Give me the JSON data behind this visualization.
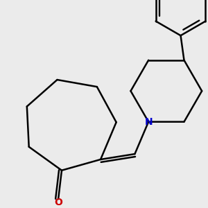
{
  "background_color": "#ebebeb",
  "bond_color": "#000000",
  "bond_width": 1.8,
  "N_color": "#0000cc",
  "O_color": "#cc0000",
  "font_size_N": 10,
  "font_size_O": 10,
  "figsize": [
    3.0,
    3.0
  ],
  "dpi": 100
}
